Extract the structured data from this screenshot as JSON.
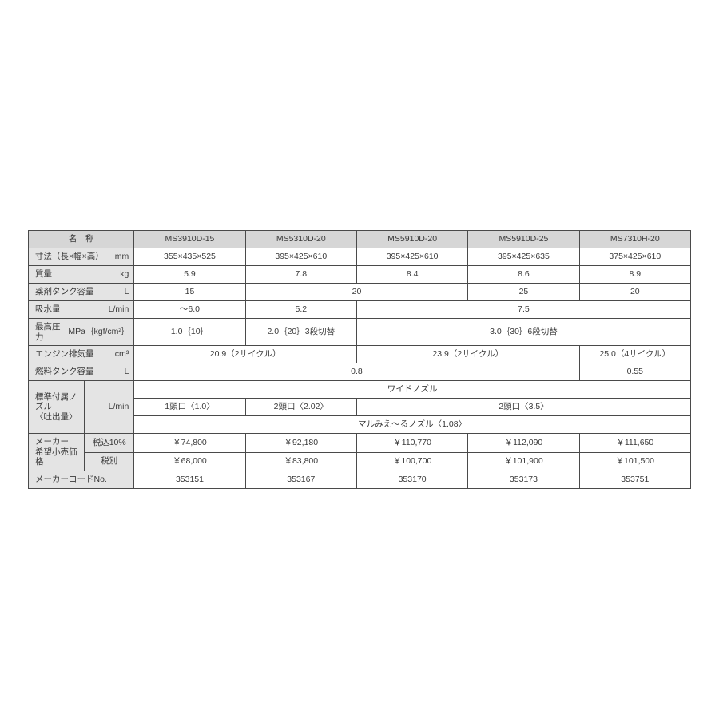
{
  "header": {
    "name": "名　称",
    "models": [
      "MS3910D-15",
      "MS5310D-20",
      "MS5910D-20",
      "MS5910D-25",
      "MS7310H-20"
    ]
  },
  "rows": {
    "dimensions": {
      "label": "寸法（長×幅×高）",
      "unit": "mm",
      "v": [
        "355×435×525",
        "395×425×610",
        "395×425×610",
        "395×425×635",
        "375×425×610"
      ]
    },
    "mass": {
      "label": "質量",
      "unit": "kg",
      "v": [
        "5.9",
        "7.8",
        "8.4",
        "8.6",
        "8.9"
      ]
    },
    "tank": {
      "label": "薬剤タンク容量",
      "unit": "L",
      "v1": "15",
      "v23": "20",
      "v4": "25",
      "v5": "20"
    },
    "suction": {
      "label": "吸水量",
      "unit": "L/min",
      "v1": "〜6.0",
      "v2": "5.2",
      "v345": "7.5"
    },
    "pressure": {
      "label": "最高圧力",
      "unit": "MPa｛kgf/cm²｝",
      "v1": "1.0｛10｝",
      "v2": "2.0｛20｝3段切替",
      "v345": "3.0｛30｝6段切替"
    },
    "disp": {
      "label": "エンジン排気量",
      "unit": "cm³",
      "v12": "20.9（2サイクル）",
      "v34": "23.9（2サイクル）",
      "v5": "25.0（4サイクル）"
    },
    "fuel": {
      "label": "燃料タンク容量",
      "unit": "L",
      "v1234": "0.8",
      "v5": "0.55"
    },
    "nozzle": {
      "label": "標準付属ノズル\n〈吐出量〉",
      "unit": "L/min",
      "top": "ワイドノズル",
      "m1": "1頭口〈1.0〉",
      "m2": "2頭口〈2.02〉",
      "m345": "2頭口〈3.5〉",
      "bot": "マルみえ〜るノズル〈1.08〉"
    },
    "price": {
      "label": "メーカー\n希望小売価格",
      "taxinc_label": "税込10%",
      "taxinc": [
        "￥74,800",
        "￥92,180",
        "￥110,770",
        "￥112,090",
        "￥111,650"
      ],
      "taxex_label": "税別",
      "taxex": [
        "￥68,000",
        "￥83,800",
        "￥100,700",
        "￥101,900",
        "￥101,500"
      ]
    },
    "code": {
      "label": "メーカーコードNo.",
      "v": [
        "353151",
        "353167",
        "353170",
        "353173",
        "353751"
      ]
    }
  }
}
